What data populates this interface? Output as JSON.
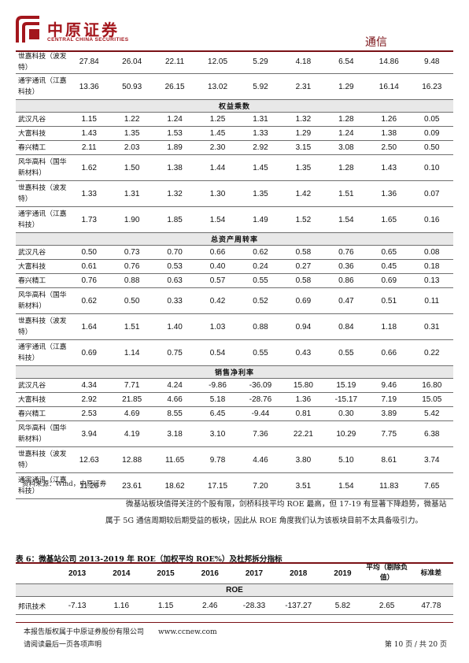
{
  "header": {
    "logo_cn": "中原证券",
    "logo_en": "CENTRAL CHINA SECURITIES",
    "section": "通信"
  },
  "main_table": {
    "rows": [
      {
        "type": "data",
        "tall": true,
        "name": "世嘉科技（波发特）",
        "values": [
          "27.84",
          "26.04",
          "22.11",
          "12.05",
          "5.29",
          "4.18",
          "6.54",
          "14.86",
          "9.48"
        ]
      },
      {
        "type": "data",
        "tall": true,
        "name": "通宇通讯（江嘉科技）",
        "values": [
          "13.36",
          "50.93",
          "26.15",
          "13.02",
          "5.92",
          "2.31",
          "1.29",
          "16.14",
          "16.23"
        ]
      },
      {
        "type": "section",
        "title": "权益乘数"
      },
      {
        "type": "data",
        "tall": false,
        "name": "武汉凡谷",
        "values": [
          "1.15",
          "1.22",
          "1.24",
          "1.25",
          "1.31",
          "1.32",
          "1.28",
          "1.26",
          "0.05"
        ]
      },
      {
        "type": "data",
        "tall": false,
        "name": "大富科技",
        "values": [
          "1.43",
          "1.35",
          "1.53",
          "1.45",
          "1.33",
          "1.29",
          "1.24",
          "1.38",
          "0.09"
        ]
      },
      {
        "type": "data",
        "tall": false,
        "name": "春兴精工",
        "values": [
          "2.11",
          "2.03",
          "1.89",
          "2.30",
          "2.92",
          "3.15",
          "3.08",
          "2.50",
          "0.50"
        ]
      },
      {
        "type": "data",
        "tall": true,
        "name": "风华高科（国华新材料）",
        "values": [
          "1.62",
          "1.50",
          "1.38",
          "1.44",
          "1.45",
          "1.35",
          "1.28",
          "1.43",
          "0.10"
        ]
      },
      {
        "type": "data",
        "tall": true,
        "name": "世嘉科技（波发特）",
        "values": [
          "1.33",
          "1.31",
          "1.32",
          "1.30",
          "1.35",
          "1.42",
          "1.51",
          "1.36",
          "0.07"
        ]
      },
      {
        "type": "data",
        "tall": true,
        "name": "通宇通讯（江嘉科技）",
        "values": [
          "1.73",
          "1.90",
          "1.85",
          "1.54",
          "1.49",
          "1.52",
          "1.54",
          "1.65",
          "0.16"
        ]
      },
      {
        "type": "section",
        "title": "总资产周转率"
      },
      {
        "type": "data",
        "tall": false,
        "name": "武汉凡谷",
        "values": [
          "0.50",
          "0.73",
          "0.70",
          "0.66",
          "0.62",
          "0.58",
          "0.76",
          "0.65",
          "0.08"
        ]
      },
      {
        "type": "data",
        "tall": false,
        "name": "大富科技",
        "values": [
          "0.61",
          "0.76",
          "0.53",
          "0.40",
          "0.24",
          "0.27",
          "0.36",
          "0.45",
          "0.18"
        ]
      },
      {
        "type": "data",
        "tall": false,
        "name": "春兴精工",
        "values": [
          "0.76",
          "0.88",
          "0.63",
          "0.57",
          "0.55",
          "0.58",
          "0.86",
          "0.69",
          "0.13"
        ]
      },
      {
        "type": "data",
        "tall": true,
        "name": "风华高科（国华新材料）",
        "values": [
          "0.62",
          "0.50",
          "0.33",
          "0.42",
          "0.52",
          "0.69",
          "0.47",
          "0.51",
          "0.11"
        ]
      },
      {
        "type": "data",
        "tall": true,
        "name": "世嘉科技（波发特）",
        "values": [
          "1.64",
          "1.51",
          "1.40",
          "1.03",
          "0.88",
          "0.94",
          "0.84",
          "1.18",
          "0.31"
        ]
      },
      {
        "type": "data",
        "tall": true,
        "name": "通宇通讯（江嘉科技）",
        "values": [
          "0.69",
          "1.14",
          "0.75",
          "0.54",
          "0.55",
          "0.43",
          "0.55",
          "0.66",
          "0.22"
        ]
      },
      {
        "type": "section",
        "title": "销售净利率"
      },
      {
        "type": "data",
        "tall": false,
        "name": "武汉凡谷",
        "values": [
          "4.34",
          "7.71",
          "4.24",
          "-9.86",
          "-36.09",
          "15.80",
          "15.19",
          "9.46",
          "16.80"
        ]
      },
      {
        "type": "data",
        "tall": false,
        "name": "大富科技",
        "values": [
          "2.92",
          "21.85",
          "4.66",
          "5.18",
          "-28.76",
          "1.36",
          "-15.17",
          "7.19",
          "15.05"
        ]
      },
      {
        "type": "data",
        "tall": false,
        "name": "春兴精工",
        "values": [
          "2.53",
          "4.69",
          "8.55",
          "6.45",
          "-9.44",
          "0.81",
          "0.30",
          "3.89",
          "5.42"
        ]
      },
      {
        "type": "data",
        "tall": true,
        "name": "风华高科（国华新材料）",
        "values": [
          "3.94",
          "4.19",
          "3.18",
          "3.10",
          "7.36",
          "22.21",
          "10.29",
          "7.75",
          "6.38"
        ]
      },
      {
        "type": "data",
        "tall": true,
        "name": "世嘉科技（波发特）",
        "values": [
          "12.63",
          "12.88",
          "11.65",
          "9.78",
          "4.46",
          "3.80",
          "5.10",
          "8.61",
          "3.74"
        ]
      },
      {
        "type": "data",
        "tall": true,
        "name": "通宇通讯（江嘉科技）",
        "values": [
          "11.20",
          "23.61",
          "18.62",
          "17.15",
          "7.20",
          "3.51",
          "1.54",
          "11.83",
          "7.65"
        ]
      }
    ]
  },
  "source_note": "资料来源：Wind，中原证券",
  "paragraph": "微基站板块值得关注的个股有限，剑桥科技平均 ROE 最高，但 17-19 有显著下降趋势，微基站属于 5G 通信周期较后期受益的板块，因此从 ROE 角度我们认为该板块目前不太具备吸引力。",
  "table6": {
    "caption": "表 6：微基站公司 2013-2019 年 ROE（加权平均 ROE%）及杜邦拆分指标",
    "headers": [
      "2013",
      "2014",
      "2015",
      "2016",
      "2017",
      "2018",
      "2019",
      "平均（剔除负值）",
      "标准差"
    ],
    "section": "ROE",
    "rows": [
      {
        "name": "邦讯技术",
        "values": [
          "-7.13",
          "1.16",
          "1.15",
          "2.46",
          "-28.33",
          "-137.27",
          "5.82",
          "2.65",
          "47.78"
        ]
      }
    ]
  },
  "footer": {
    "copyright": "本报告版权属于中原证券股份有限公司　　www.ccnew.com",
    "disclaimer": "请阅读最后一页各项声明",
    "page": "第 10 页 / 共 20 页"
  }
}
